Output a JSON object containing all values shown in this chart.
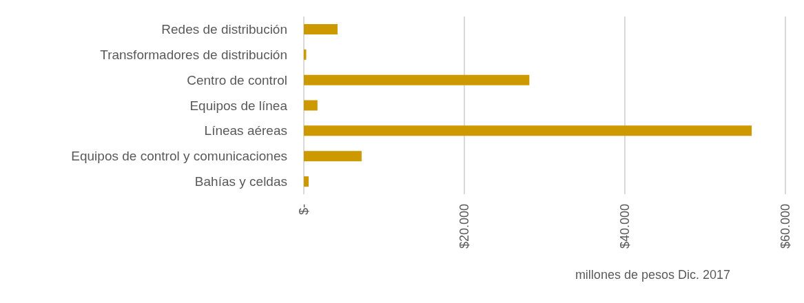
{
  "chart_data": {
    "type": "bar",
    "orientation": "horizontal",
    "xlabel": "millones de pesos Dic. 2017",
    "categories": [
      "Redes de distribución",
      "Transformadores de distribución",
      "Centro de control",
      "Equipos de línea",
      "Líneas aéreas",
      "Equipos de control y comunicaciones",
      "Bahías y celdas"
    ],
    "values": [
      4200,
      300,
      28100,
      1700,
      55800,
      7200,
      600
    ],
    "color": "#cc9900",
    "xlim": [
      0,
      60000
    ],
    "xticks": [
      {
        "value": 0,
        "label": "$-"
      },
      {
        "value": 20000,
        "label": "$20.000"
      },
      {
        "value": 40000,
        "label": "$40.000"
      },
      {
        "value": 60000,
        "label": "$60.000"
      }
    ],
    "grid": "x"
  }
}
